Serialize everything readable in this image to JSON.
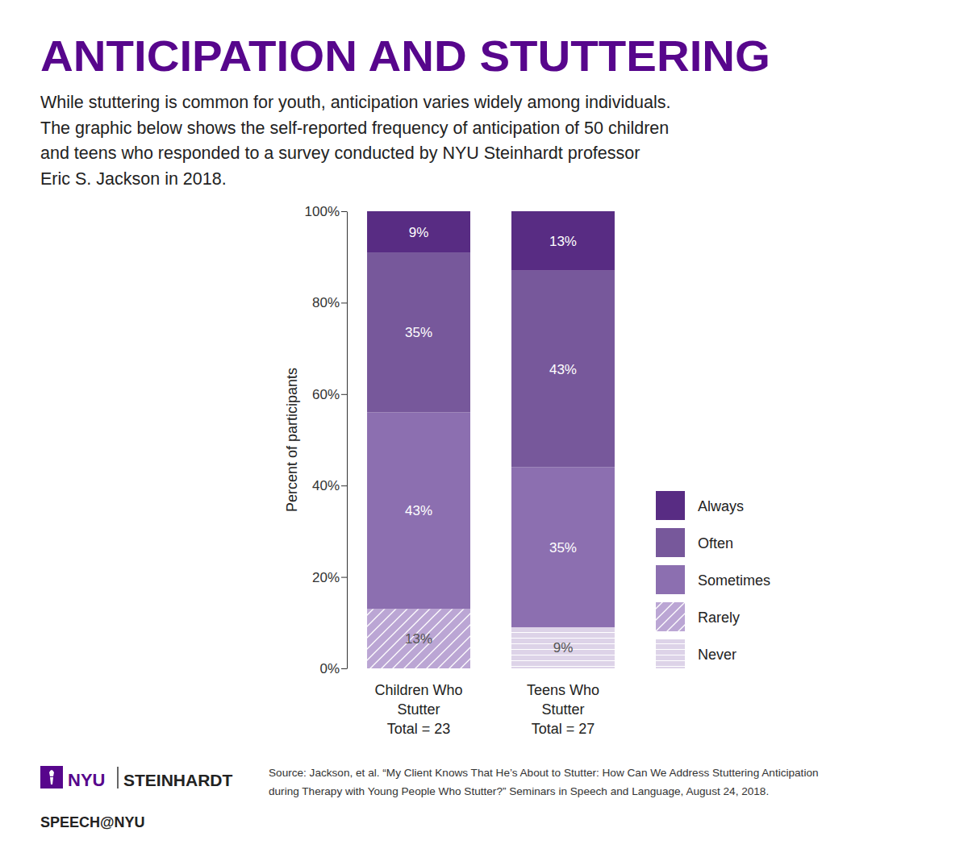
{
  "chart_data": {
    "type": "bar",
    "title": "ANTICIPATION AND STUTTERING",
    "subtitle": [
      "While stuttering is common for youth, anticipation varies widely among individuals.",
      "The graphic below shows the self-reported frequency of anticipation of 50 children",
      "and teens who responded to a survey conducted by NYU Steinhardt professor",
      "Eric S. Jackson in 2018."
    ],
    "y_label": "Percent of participants",
    "categories": [
      "Children Who Stutter",
      "Teens Who Stutter"
    ],
    "sample_sizes": [
      "Total = 23",
      "Total = 27"
    ],
    "series": [
      {
        "name": "Never",
        "color": "#ddd3e8",
        "line_style": "horizontal",
        "values": [
          0,
          9
        ],
        "value_labels": [
          null,
          "9%"
        ]
      },
      {
        "name": "Rarely",
        "color": "#bba6d4",
        "line_style": "diagonal",
        "values": [
          13,
          0
        ],
        "value_labels": [
          "13%",
          null
        ]
      },
      {
        "name": "Sometimes",
        "color": "#8c6fb0",
        "values": [
          43,
          35
        ],
        "value_labels": [
          "43%",
          "35%"
        ]
      },
      {
        "name": "Often",
        "color": "#77589b",
        "values": [
          35,
          43
        ],
        "value_labels": [
          "35%",
          "43%"
        ]
      },
      {
        "name": "Always",
        "color": "#582c83",
        "values": [
          9,
          13
        ],
        "value_labels": [
          "9%",
          "13%"
        ]
      }
    ],
    "stacked": true,
    "data_labels": true,
    "legend": "right",
    "grid": false,
    "ylim": [
      0,
      100
    ],
    "yticks": [
      {
        "value": 0,
        "label": "0%"
      },
      {
        "value": 20,
        "label": "20%"
      },
      {
        "value": 40,
        "label": "40%"
      },
      {
        "value": 60,
        "label": "60%"
      },
      {
        "value": 80,
        "label": "80%"
      },
      {
        "value": 100,
        "label": "100%"
      }
    ],
    "source": [
      "Source: Jackson, et al. “My Client Knows That He’s About to Stutter: How Can We Address Stuttering Anticipation",
      "during Therapy with Young People Who Stutter?” Seminars in Speech and Language, August 24, 2018."
    ],
    "branding": {
      "logo": "NYU",
      "school": "STEINHARDT",
      "program": "SPEECH@NYU"
    }
  }
}
